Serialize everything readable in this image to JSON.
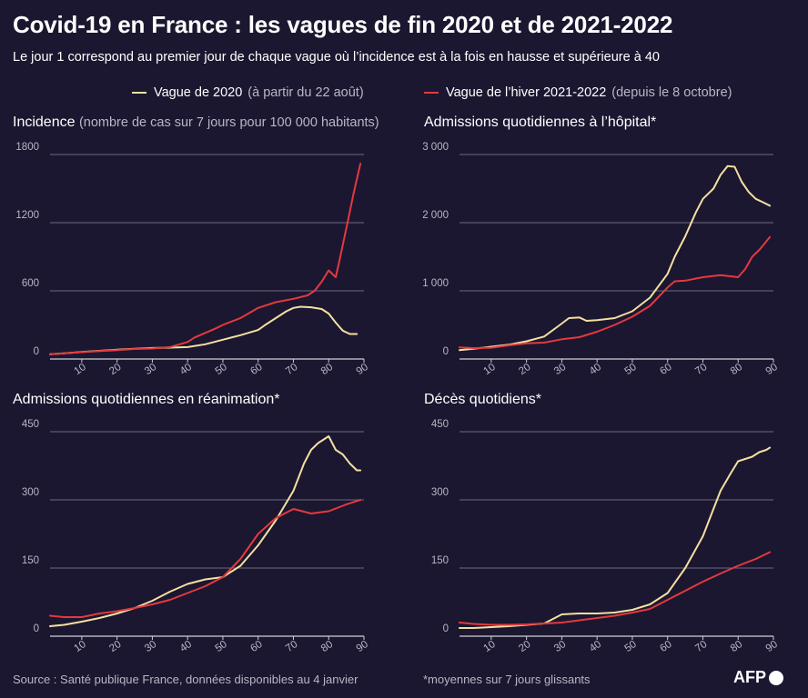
{
  "title": "Covid-19 en France : les vagues de fin 2020 et de 2021-2022",
  "subtitle": "Le jour 1 correspond au premier jour de chaque vague où l’incidence est à la fois en hausse et supérieure à 40",
  "legend": {
    "s2020_label": "Vague de 2020",
    "s2020_note": "(à partir du 22 août)",
    "s2021_label": "Vague de l’hiver 2021-2022",
    "s2021_note": "(depuis le 8 octobre)"
  },
  "colors": {
    "background": "#1b1730",
    "s2020": "#f3e0a1",
    "s2021": "#e4393f",
    "grid": "#8a879a"
  },
  "panels": {
    "incidence": {
      "label": "Incidence",
      "note": "(nombre de cas sur 7 jours pour 100 000 habitants)"
    },
    "hospital": {
      "label": "Admissions quotidiennes à l’hôpital*"
    },
    "icu": {
      "label": "Admissions quotidiennes en réanimation*"
    },
    "deaths": {
      "label": "Décès quotidiens*"
    }
  },
  "footer": {
    "source": "Source : Santé publique France, données disponibles au 4 janvier",
    "note": "*moyennes sur 7 jours glissants",
    "logo": "AFP"
  },
  "chart_data": [
    {
      "id": "incidence",
      "type": "line",
      "title": "Incidence (nombre de cas sur 7 jours pour 100 000 habitants)",
      "xlim": [
        1,
        90
      ],
      "ylim": [
        0,
        1800
      ],
      "xticks": [
        10,
        20,
        30,
        40,
        50,
        60,
        70,
        80,
        90
      ],
      "yticks": [
        0,
        600,
        1200,
        1800
      ],
      "ytick_labels": [
        "0",
        "600",
        "1200",
        "1800"
      ],
      "series": [
        {
          "name": "Vague de 2020",
          "x": [
            1,
            5,
            10,
            15,
            20,
            25,
            30,
            35,
            40,
            45,
            50,
            55,
            60,
            62,
            65,
            68,
            70,
            72,
            75,
            78,
            80,
            82,
            84,
            86,
            88
          ],
          "y": [
            42,
            50,
            62,
            72,
            82,
            90,
            97,
            100,
            105,
            130,
            170,
            210,
            255,
            300,
            360,
            420,
            450,
            460,
            455,
            440,
            400,
            320,
            250,
            220,
            220
          ]
        },
        {
          "name": "Vague de l’hiver 2021-2022",
          "x": [
            1,
            5,
            10,
            15,
            20,
            25,
            30,
            35,
            40,
            42,
            45,
            48,
            50,
            55,
            60,
            65,
            70,
            74,
            76,
            78,
            80,
            82,
            83,
            85,
            87,
            89
          ],
          "y": [
            42,
            50,
            60,
            70,
            78,
            88,
            92,
            105,
            150,
            190,
            230,
            270,
            300,
            360,
            450,
            500,
            530,
            560,
            600,
            680,
            780,
            720,
            860,
            1150,
            1450,
            1720
          ]
        }
      ]
    },
    {
      "id": "hospital",
      "type": "line",
      "title": "Admissions quotidiennes à l’hôpital*",
      "xlim": [
        1,
        90
      ],
      "ylim": [
        0,
        3000
      ],
      "xticks": [
        10,
        20,
        30,
        40,
        50,
        60,
        70,
        80,
        90
      ],
      "yticks": [
        0,
        1000,
        2000,
        3000
      ],
      "ytick_labels": [
        "0",
        "1 000",
        "2 000",
        "3 000"
      ],
      "series": [
        {
          "name": "Vague de 2020",
          "x": [
            1,
            5,
            10,
            15,
            20,
            25,
            30,
            32,
            35,
            37,
            40,
            45,
            50,
            55,
            60,
            62,
            65,
            68,
            70,
            73,
            75,
            77,
            79,
            81,
            83,
            85,
            87,
            89
          ],
          "y": [
            130,
            150,
            180,
            210,
            260,
            330,
            520,
            600,
            610,
            560,
            570,
            600,
            700,
            900,
            1250,
            1500,
            1800,
            2150,
            2350,
            2500,
            2700,
            2830,
            2820,
            2600,
            2450,
            2350,
            2300,
            2250
          ]
        },
        {
          "name": "Vague de l’hiver 2021-2022",
          "x": [
            1,
            5,
            10,
            15,
            20,
            25,
            30,
            35,
            40,
            45,
            50,
            55,
            60,
            62,
            65,
            70,
            75,
            80,
            82,
            84,
            86,
            89
          ],
          "y": [
            170,
            160,
            165,
            200,
            230,
            240,
            290,
            320,
            400,
            500,
            620,
            780,
            1050,
            1140,
            1150,
            1200,
            1230,
            1200,
            1320,
            1500,
            1600,
            1790
          ]
        }
      ]
    },
    {
      "id": "icu",
      "type": "line",
      "title": "Admissions quotidiennes en réanimation*",
      "xlim": [
        1,
        90
      ],
      "ylim": [
        0,
        450
      ],
      "xticks": [
        10,
        20,
        30,
        40,
        50,
        60,
        70,
        80,
        90
      ],
      "yticks": [
        0,
        150,
        300,
        450
      ],
      "ytick_labels": [
        "0",
        "150",
        "300",
        "450"
      ],
      "series": [
        {
          "name": "Vague de 2020",
          "x": [
            1,
            5,
            10,
            15,
            20,
            25,
            30,
            35,
            40,
            45,
            50,
            55,
            60,
            65,
            70,
            73,
            75,
            77,
            79,
            80,
            82,
            84,
            86,
            88,
            89
          ],
          "y": [
            22,
            25,
            32,
            40,
            50,
            62,
            78,
            98,
            115,
            125,
            130,
            155,
            200,
            255,
            320,
            380,
            410,
            425,
            435,
            440,
            410,
            400,
            380,
            365,
            365
          ]
        },
        {
          "name": "Vague de l’hiver 2021-2022",
          "x": [
            1,
            5,
            10,
            15,
            20,
            25,
            30,
            35,
            40,
            45,
            50,
            55,
            60,
            65,
            70,
            75,
            80,
            85,
            89
          ],
          "y": [
            45,
            42,
            42,
            50,
            55,
            62,
            70,
            80,
            95,
            110,
            130,
            170,
            225,
            260,
            280,
            270,
            275,
            290,
            300
          ]
        }
      ]
    },
    {
      "id": "deaths",
      "type": "line",
      "title": "Décès quotidiens*",
      "xlim": [
        1,
        90
      ],
      "ylim": [
        0,
        450
      ],
      "xticks": [
        10,
        20,
        30,
        40,
        50,
        60,
        70,
        80,
        90
      ],
      "yticks": [
        0,
        150,
        300,
        450
      ],
      "ytick_labels": [
        "0",
        "150",
        "300",
        "450"
      ],
      "series": [
        {
          "name": "Vague de 2020",
          "x": [
            1,
            5,
            10,
            15,
            20,
            25,
            28,
            30,
            35,
            40,
            45,
            50,
            55,
            60,
            65,
            70,
            73,
            75,
            78,
            80,
            82,
            84,
            86,
            88,
            89
          ],
          "y": [
            18,
            18,
            20,
            22,
            25,
            28,
            40,
            48,
            50,
            50,
            52,
            58,
            70,
            95,
            150,
            220,
            280,
            320,
            360,
            385,
            390,
            395,
            405,
            410,
            415
          ]
        },
        {
          "name": "Vague de l’hiver 2021-2022",
          "x": [
            1,
            5,
            10,
            15,
            20,
            25,
            30,
            35,
            40,
            45,
            50,
            55,
            60,
            65,
            70,
            75,
            80,
            85,
            89
          ],
          "y": [
            30,
            27,
            25,
            25,
            26,
            28,
            30,
            35,
            40,
            45,
            52,
            60,
            80,
            100,
            120,
            138,
            155,
            170,
            185
          ]
        }
      ]
    }
  ]
}
